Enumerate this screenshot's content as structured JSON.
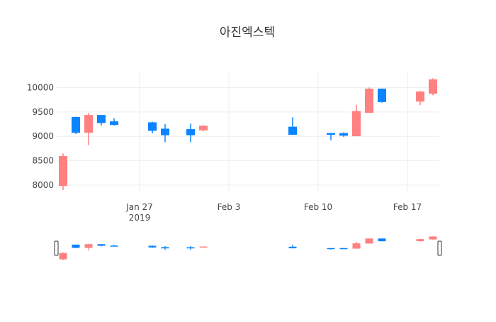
{
  "chart_data": {
    "type": "candlestick",
    "title": "아진엑스텍",
    "xlabel": "",
    "ylabel": "",
    "x_tick_labels": [
      {
        "date": "2019-01-27",
        "label": "Jan 27",
        "sublabel": "2019"
      },
      {
        "date": "2019-02-03",
        "label": "Feb 3",
        "sublabel": ""
      },
      {
        "date": "2019-02-10",
        "label": "Feb 10",
        "sublabel": ""
      },
      {
        "date": "2019-02-17",
        "label": "Feb 17",
        "sublabel": ""
      }
    ],
    "y_ticks": [
      8000,
      8500,
      9000,
      9500,
      10000
    ],
    "y_tick_labels": [
      "8000",
      "8500",
      "9000",
      "9500",
      "10000"
    ],
    "x_range": [
      "2019-01-21",
      "2019-02-19"
    ],
    "y_range": [
      7870,
      10340
    ],
    "grid": true,
    "legend": "none",
    "rangeslider": true,
    "colors": {
      "increasing": "#ff8080",
      "decreasing": "#0a84ff",
      "grid": "#eeeeee",
      "text": "#444444",
      "title": "#333333"
    },
    "candles": [
      {
        "date": "2019-01-21",
        "open": 7990,
        "high": 8650,
        "low": 7900,
        "close": 8590
      },
      {
        "date": "2019-01-22",
        "open": 9390,
        "high": 9400,
        "low": 9050,
        "close": 9080
      },
      {
        "date": "2019-01-23",
        "open": 9080,
        "high": 9480,
        "low": 8820,
        "close": 9430
      },
      {
        "date": "2019-01-24",
        "open": 9430,
        "high": 9430,
        "low": 9220,
        "close": 9280
      },
      {
        "date": "2019-01-25",
        "open": 9300,
        "high": 9370,
        "low": 9220,
        "close": 9240
      },
      {
        "date": "2019-01-28",
        "open": 9280,
        "high": 9300,
        "low": 9060,
        "close": 9120
      },
      {
        "date": "2019-01-29",
        "open": 9150,
        "high": 9250,
        "low": 8880,
        "close": 9030
      },
      {
        "date": "2019-01-31",
        "open": 9140,
        "high": 9260,
        "low": 8880,
        "close": 9030
      },
      {
        "date": "2019-02-01",
        "open": 9130,
        "high": 9230,
        "low": 9100,
        "close": 9210
      },
      {
        "date": "2019-02-08",
        "open": 9190,
        "high": 9390,
        "low": 9030,
        "close": 9040
      },
      {
        "date": "2019-02-11",
        "open": 9060,
        "high": 9070,
        "low": 8920,
        "close": 9040
      },
      {
        "date": "2019-02-12",
        "open": 9060,
        "high": 9080,
        "low": 8990,
        "close": 9020
      },
      {
        "date": "2019-02-13",
        "open": 9010,
        "high": 9650,
        "low": 9000,
        "close": 9510
      },
      {
        "date": "2019-02-14",
        "open": 9490,
        "high": 10000,
        "low": 9480,
        "close": 9970
      },
      {
        "date": "2019-02-15",
        "open": 9970,
        "high": 9980,
        "low": 9690,
        "close": 9710
      },
      {
        "date": "2019-02-18",
        "open": 9720,
        "high": 9930,
        "low": 9640,
        "close": 9910
      },
      {
        "date": "2019-02-19",
        "open": 9880,
        "high": 10190,
        "low": 9840,
        "close": 10160
      }
    ]
  }
}
